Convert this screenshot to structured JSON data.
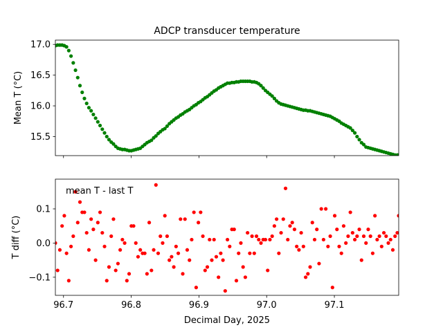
{
  "figure": {
    "title": "ADCP transducer temperature",
    "xlabel": "Decimal Day, 2025"
  },
  "colors": {
    "top_series": "#008000",
    "bottom_series": "#ff0000",
    "axes": "#000000",
    "background": "#ffffff"
  },
  "chart_data": [
    {
      "type": "scatter",
      "title": "ADCP transducer temperature",
      "xlabel": "",
      "ylabel": "Mean T (°C)",
      "xlim": [
        96.688,
        97.195
      ],
      "ylim": [
        15.19,
        17.07
      ],
      "xticks": [
        96.7,
        96.8,
        96.9,
        97.0,
        97.1
      ],
      "xtick_labels_visible": false,
      "yticks": [
        15.5,
        16.0,
        16.5,
        17.0
      ],
      "ytick_labels": [
        "15.5",
        "16.0",
        "16.5",
        "17.0"
      ],
      "grid": false,
      "legend": "none",
      "marker": "circle",
      "color": "#008000",
      "x": [
        96.688,
        96.6913,
        96.6946,
        96.6979,
        96.7012,
        96.7045,
        96.7078,
        96.7111,
        96.7144,
        96.7177,
        96.721,
        96.7243,
        96.7276,
        96.7309,
        96.7342,
        96.7375,
        96.7408,
        96.7441,
        96.7474,
        96.7507,
        96.754,
        96.7573,
        96.7606,
        96.7639,
        96.7672,
        96.7705,
        96.7738,
        96.7771,
        96.7804,
        96.7837,
        96.787,
        96.7903,
        96.7936,
        96.7969,
        96.8002,
        96.8035,
        96.8068,
        96.8101,
        96.8134,
        96.8167,
        96.82,
        96.8233,
        96.8266,
        96.8299,
        96.8332,
        96.8365,
        96.8398,
        96.8431,
        96.8464,
        96.8497,
        96.853,
        96.8563,
        96.8596,
        96.8629,
        96.8662,
        96.8695,
        96.8728,
        96.8761,
        96.8794,
        96.8827,
        96.886,
        96.8893,
        96.8926,
        96.8959,
        96.8992,
        96.9025,
        96.9058,
        96.9091,
        96.9124,
        96.9157,
        96.919,
        96.9223,
        96.9256,
        96.9289,
        96.9322,
        96.9355,
        96.9388,
        96.9421,
        96.9454,
        96.9487,
        96.952,
        96.9553,
        96.9586,
        96.9619,
        96.9652,
        96.9685,
        96.9718,
        96.9751,
        96.9784,
        96.9817,
        96.985,
        96.9883,
        96.9916,
        96.9949,
        96.9982,
        97.0015,
        97.0048,
        97.0081,
        97.0114,
        97.0147,
        97.018,
        97.0213,
        97.0246,
        97.0279,
        97.0312,
        97.0345,
        97.0378,
        97.0411,
        97.0444,
        97.0477,
        97.051,
        97.0543,
        97.0576,
        97.0609,
        97.0642,
        97.0675,
        97.0708,
        97.0741,
        97.0774,
        97.0807,
        97.084,
        97.0873,
        97.0906,
        97.0939,
        97.0972,
        97.1005,
        97.1038,
        97.1071,
        97.1104,
        97.1137,
        97.117,
        97.1203,
        97.1236,
        97.1269,
        97.1302,
        97.1335,
        97.1368,
        97.1401,
        97.1434,
        97.1467,
        97.15,
        97.1533,
        97.1566,
        97.1599,
        97.1632,
        97.1665,
        97.1698,
        97.1731,
        97.1764,
        97.1797,
        97.183,
        97.1863,
        97.1896,
        97.1929,
        97.195
      ],
      "y": [
        16.98,
        16.99,
        16.99,
        16.99,
        16.98,
        16.96,
        16.9,
        16.81,
        16.7,
        16.58,
        16.46,
        16.33,
        16.22,
        16.12,
        16.04,
        15.97,
        15.92,
        15.86,
        15.8,
        15.74,
        15.68,
        15.62,
        15.56,
        15.5,
        15.45,
        15.41,
        15.38,
        15.34,
        15.31,
        15.3,
        15.29,
        15.29,
        15.28,
        15.27,
        15.27,
        15.28,
        15.29,
        15.3,
        15.31,
        15.34,
        15.37,
        15.4,
        15.42,
        15.44,
        15.48,
        15.51,
        15.55,
        15.58,
        15.61,
        15.63,
        15.67,
        15.71,
        15.74,
        15.77,
        15.8,
        15.82,
        15.85,
        15.87,
        15.9,
        15.92,
        15.94,
        15.97,
        16.0,
        16.02,
        16.05,
        16.07,
        16.1,
        16.13,
        16.15,
        16.18,
        16.21,
        16.24,
        16.26,
        16.29,
        16.31,
        16.33,
        16.35,
        16.37,
        16.37,
        16.38,
        16.38,
        16.39,
        16.39,
        16.4,
        16.4,
        16.4,
        16.4,
        16.4,
        16.39,
        16.39,
        16.38,
        16.36,
        16.33,
        16.29,
        16.25,
        16.22,
        16.19,
        16.16,
        16.12,
        16.08,
        16.05,
        16.03,
        16.02,
        16.01,
        16.0,
        15.99,
        15.98,
        15.97,
        15.96,
        15.95,
        15.94,
        15.93,
        15.93,
        15.92,
        15.92,
        15.91,
        15.9,
        15.89,
        15.88,
        15.87,
        15.86,
        15.85,
        15.84,
        15.83,
        15.81,
        15.79,
        15.77,
        15.75,
        15.72,
        15.7,
        15.68,
        15.66,
        15.64,
        15.6,
        15.56,
        15.5,
        15.45,
        15.4,
        15.37,
        15.33,
        15.32,
        15.31,
        15.3,
        15.29,
        15.28,
        15.27,
        15.26,
        15.25,
        15.24,
        15.23,
        15.22,
        15.21,
        15.2,
        15.2,
        15.2
      ]
    },
    {
      "type": "scatter",
      "title": "",
      "xlabel": "Decimal Day, 2025",
      "ylabel": "T diff (°C)",
      "annotation": "mean T - last T",
      "xlim": [
        96.688,
        97.195
      ],
      "ylim": [
        -0.153,
        0.187
      ],
      "xticks": [
        96.7,
        96.8,
        96.9,
        97.0,
        97.1
      ],
      "xtick_labels": [
        "96.7",
        "96.8",
        "96.9",
        "97.0",
        "97.1"
      ],
      "yticks": [
        -0.1,
        0.0,
        0.1
      ],
      "ytick_labels": [
        "−0.1",
        "0.0",
        "0.1"
      ],
      "grid": false,
      "legend": "none",
      "marker": "circle",
      "color": "#ff0000",
      "x": [
        96.688,
        96.6913,
        96.6946,
        96.6979,
        96.7012,
        96.7045,
        96.7078,
        96.7111,
        96.7144,
        96.7177,
        96.721,
        96.7243,
        96.7276,
        96.7309,
        96.7342,
        96.7375,
        96.7408,
        96.7441,
        96.7474,
        96.7507,
        96.754,
        96.7573,
        96.7606,
        96.7639,
        96.7672,
        96.7705,
        96.7738,
        96.7771,
        96.7804,
        96.7837,
        96.787,
        96.7903,
        96.7936,
        96.7969,
        96.8002,
        96.8035,
        96.8068,
        96.8101,
        96.8134,
        96.8167,
        96.82,
        96.8233,
        96.8266,
        96.8299,
        96.8332,
        96.8365,
        96.8398,
        96.8431,
        96.8464,
        96.8497,
        96.853,
        96.8563,
        96.8596,
        96.8629,
        96.8662,
        96.8695,
        96.8728,
        96.8761,
        96.8794,
        96.8827,
        96.886,
        96.8893,
        96.8926,
        96.8959,
        96.8992,
        96.9025,
        96.9058,
        96.9091,
        96.9124,
        96.9157,
        96.919,
        96.9223,
        96.9256,
        96.9289,
        96.9322,
        96.9355,
        96.9388,
        96.9421,
        96.9454,
        96.9487,
        96.952,
        96.9553,
        96.9586,
        96.9619,
        96.9652,
        96.9685,
        96.9718,
        96.9751,
        96.9784,
        96.9817,
        96.985,
        96.9883,
        96.9916,
        96.9949,
        96.9982,
        97.0015,
        97.0048,
        97.0081,
        97.0114,
        97.0147,
        97.018,
        97.0213,
        97.0246,
        97.0279,
        97.0312,
        97.0345,
        97.0378,
        97.0411,
        97.0444,
        97.0477,
        97.051,
        97.0543,
        97.0576,
        97.0609,
        97.0642,
        97.0675,
        97.0708,
        97.0741,
        97.0774,
        97.0807,
        97.084,
        97.0873,
        97.0906,
        97.0939,
        97.0972,
        97.1005,
        97.1038,
        97.1071,
        97.1104,
        97.1137,
        97.117,
        97.1203,
        97.1236,
        97.1269,
        97.1302,
        97.1335,
        97.1368,
        97.1401,
        97.1434,
        97.1467,
        97.15,
        97.1533,
        97.1566,
        97.1599,
        97.1632,
        97.1665,
        97.1698,
        97.1731,
        97.1764,
        97.1797,
        97.183,
        97.1863,
        97.1896,
        97.1929,
        97.195
      ],
      "y": [
        0.0,
        -0.08,
        -0.02,
        0.05,
        0.08,
        -0.03,
        -0.11,
        -0.01,
        0.02,
        0.15,
        0.06,
        0.12,
        0.09,
        0.09,
        0.03,
        -0.02,
        0.07,
        0.04,
        -0.05,
        0.06,
        0.09,
        0.03,
        -0.01,
        -0.11,
        -0.07,
        0.02,
        0.07,
        -0.08,
        -0.06,
        -0.02,
        0.01,
        0.0,
        -0.11,
        -0.09,
        0.05,
        0.05,
        0.0,
        -0.04,
        -0.02,
        -0.03,
        -0.03,
        -0.09,
        0.06,
        -0.08,
        -0.02,
        0.17,
        -0.03,
        0.02,
        0.0,
        0.08,
        0.02,
        -0.05,
        -0.04,
        -0.07,
        -0.01,
        -0.03,
        0.07,
        -0.09,
        0.07,
        -0.02,
        -0.05,
        0.01,
        0.09,
        -0.13,
        0.06,
        0.09,
        0.02,
        -0.08,
        -0.07,
        0.01,
        -0.05,
        0.01,
        -0.04,
        -0.1,
        -0.03,
        -0.05,
        -0.14,
        0.01,
        -0.01,
        0.04,
        0.04,
        -0.11,
        -0.03,
        0.0,
        -0.07,
        -0.1,
        0.03,
        -0.03,
        0.02,
        -0.03,
        0.02,
        0.01,
        0.0,
        0.01,
        0.01,
        -0.08,
        0.01,
        0.02,
        0.05,
        0.07,
        -0.03,
        0.03,
        0.07,
        0.16,
        0.01,
        0.05,
        0.06,
        0.04,
        -0.01,
        -0.02,
        0.03,
        -0.01,
        -0.1,
        -0.09,
        -0.07,
        0.06,
        0.01,
        0.04,
        -0.06,
        0.1,
        0.01,
        0.1,
        -0.01,
        0.02,
        -0.13,
        0.08,
        0.04,
        -0.01,
        -0.03,
        0.05,
        0.0,
        0.02,
        0.09,
        0.03,
        0.01,
        0.02,
        0.04,
        -0.05,
        0.02,
        0.0,
        0.04,
        0.02,
        -0.03,
        0.08,
        0.01,
        0.02,
        -0.01,
        0.03,
        0.02,
        0.0,
        0.01,
        -0.02,
        0.02,
        0.03,
        0.08
      ]
    }
  ]
}
